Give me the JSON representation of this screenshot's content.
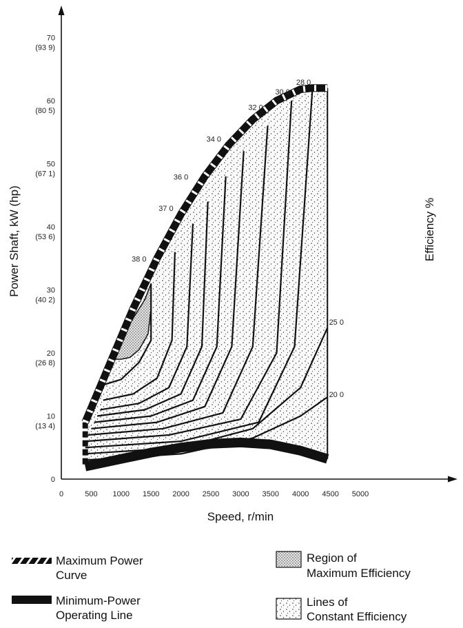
{
  "chart_data": {
    "type": "line",
    "xlabel": "Speed, r/min",
    "ylabel": "Power Shaft, kW (hp)",
    "right_label": "Efficiency %",
    "xlim": [
      0,
      5000
    ],
    "ylim": [
      0,
      70
    ],
    "x_ticks": [
      {
        "value": 0,
        "label": "0"
      },
      {
        "value": 500,
        "label": "500"
      },
      {
        "value": 1000,
        "label": "1000"
      },
      {
        "value": 1500,
        "label": "1500"
      },
      {
        "value": 2000,
        "label": "2000"
      },
      {
        "value": 2500,
        "label": "2500"
      },
      {
        "value": 3000,
        "label": "3000"
      },
      {
        "value": 3500,
        "label": "3500"
      },
      {
        "value": 4000,
        "label": "4000"
      },
      {
        "value": 4500,
        "label": "4500"
      },
      {
        "value": 5000,
        "label": "5000"
      }
    ],
    "y_ticks": [
      {
        "value": 0,
        "label": "0",
        "hp": ""
      },
      {
        "value": 10,
        "label": "10",
        "hp": "(13 4)"
      },
      {
        "value": 20,
        "label": "20",
        "hp": "(26 8)"
      },
      {
        "value": 30,
        "label": "30",
        "hp": "(40 2)"
      },
      {
        "value": 40,
        "label": "40",
        "hp": "(53 6)"
      },
      {
        "value": 50,
        "label": "50",
        "hp": "(67 1)"
      },
      {
        "value": 60,
        "label": "60",
        "hp": "(80 5)"
      },
      {
        "value": 70,
        "label": "70",
        "hp": "(93 9)"
      }
    ],
    "max_power_curve": {
      "x": [
        400,
        800,
        1200,
        1600,
        2000,
        2400,
        2800,
        3200,
        3600,
        4000,
        4200,
        4450
      ],
      "y": [
        9,
        18,
        27,
        35,
        42,
        48,
        53,
        57,
        60,
        61.8,
        62,
        62
      ]
    },
    "min_power_line": {
      "x": [
        400,
        1000,
        1500,
        2000,
        2500,
        3000,
        3500,
        4000,
        4450
      ],
      "y": [
        2,
        3.2,
        4.2,
        5,
        5.6,
        5.8,
        5.5,
        4.5,
        3.2
      ]
    },
    "max_efficiency_region": {
      "x": [
        900,
        1000,
        1200,
        1400,
        1500,
        1500,
        1450,
        1300,
        1150,
        1000,
        900
      ],
      "y": [
        19,
        22,
        25.5,
        28.5,
        31,
        27,
        23,
        20.5,
        19.3,
        19,
        19
      ]
    },
    "efficiency_lines": [
      {
        "label": "38 0",
        "label_x": 1300,
        "label_y": 34.5,
        "x": [
          720,
          1000,
          1300,
          1500,
          1500
        ],
        "y": [
          15,
          15.8,
          18.5,
          22,
          31
        ]
      },
      {
        "label": "37 0",
        "label_x": 1750,
        "label_y": 42.5,
        "x": [
          700,
          1200,
          1600,
          1850,
          1900
        ],
        "y": [
          12.5,
          13.5,
          16,
          22,
          36
        ]
      },
      {
        "label": "36 0",
        "label_x": 2000,
        "label_y": 47.5,
        "x": [
          650,
          1300,
          1800,
          2100,
          2200
        ],
        "y": [
          11,
          12,
          14.5,
          21,
          40.5
        ]
      },
      {
        "label": "",
        "label_x": 0,
        "label_y": 0,
        "x": [
          600,
          1400,
          2000,
          2350,
          2450
        ],
        "y": [
          10,
          11,
          13.5,
          21,
          44
        ]
      },
      {
        "label": "34 0",
        "label_x": 2550,
        "label_y": 53.5,
        "x": [
          550,
          1500,
          2200,
          2600,
          2750
        ],
        "y": [
          9,
          10,
          12.5,
          21,
          48
        ]
      },
      {
        "label": "",
        "label_x": 0,
        "label_y": 0,
        "x": [
          500,
          1600,
          2400,
          2850,
          3050
        ],
        "y": [
          8,
          9,
          11.5,
          21,
          52
        ]
      },
      {
        "label": "32 0",
        "label_x": 3250,
        "label_y": 58.5,
        "x": [
          450,
          1700,
          2700,
          3200,
          3450
        ],
        "y": [
          7,
          8,
          10.5,
          21,
          56
        ]
      },
      {
        "label": "30 0",
        "label_x": 3700,
        "label_y": 61,
        "x": [
          420,
          1800,
          3000,
          3600,
          3850
        ],
        "y": [
          6,
          7,
          9.5,
          20,
          60
        ]
      },
      {
        "label": "28 0",
        "label_x": 4050,
        "label_y": 62.5,
        "x": [
          400,
          2000,
          3300,
          3900,
          4200
        ],
        "y": [
          5,
          6,
          9,
          21,
          62
        ]
      },
      {
        "label": "25 0",
        "label_x": 4600,
        "label_y": 24.5,
        "x": [
          380,
          2000,
          3200,
          4000,
          4450
        ],
        "y": [
          4,
          5,
          8,
          14.5,
          24
        ]
      },
      {
        "label": "20 0",
        "label_x": 4600,
        "label_y": 13,
        "x": [
          380,
          2000,
          3200,
          4000,
          4450
        ],
        "y": [
          3,
          4,
          6.5,
          10,
          13
        ]
      }
    ]
  },
  "legend": {
    "max_power": [
      "Maximum Power",
      "Curve"
    ],
    "min_power": [
      "Minimum-Power",
      "Operating Line"
    ],
    "max_efficiency": [
      "Region of",
      "Maximum Efficiency"
    ],
    "constant_efficiency": [
      "Lines of",
      "Constant Efficiency"
    ]
  },
  "colors": {
    "ink": "#111111",
    "region_fill": "#f2f2f2",
    "max_eff_fill": "#c8c8c8"
  }
}
